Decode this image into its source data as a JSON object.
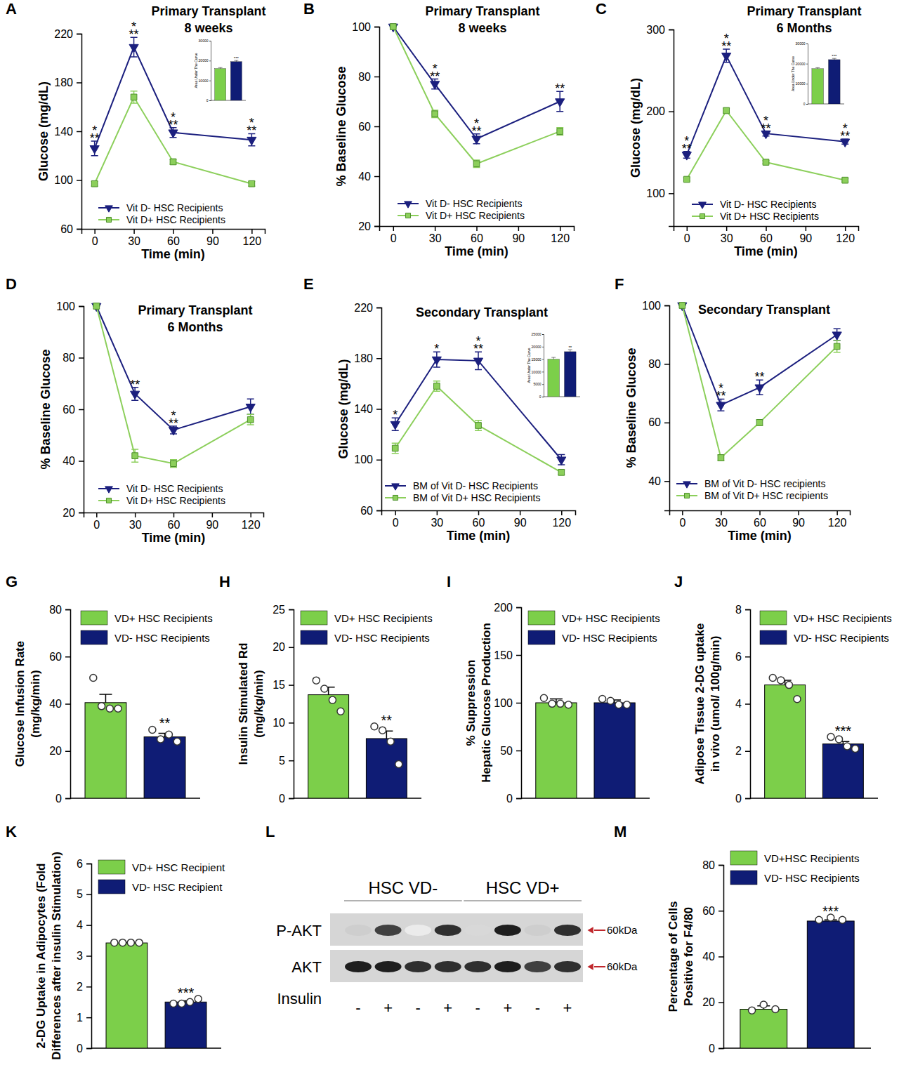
{
  "chart_data": [
    {
      "type": "line",
      "panel": "A",
      "title": "Primary Transplant",
      "subtitle": "8 weeks",
      "xlabel": "Time (min)",
      "ylabel": "Glucose (mg/dL)",
      "x": [
        0,
        30,
        60,
        120
      ],
      "xlim": [
        -10,
        130
      ],
      "xticks": [
        0,
        30,
        60,
        90,
        120
      ],
      "ylim": [
        60,
        220
      ],
      "yticks": [
        60,
        100,
        140,
        180,
        220
      ],
      "series": [
        {
          "name": "Vit D- HSC Recipients",
          "color": "#1b1f7e",
          "marker": "triangle-down",
          "line_style": "solid",
          "values": [
            126,
            209,
            139,
            133
          ],
          "errors": [
            6,
            8,
            4,
            5
          ]
        },
        {
          "name": "Vit D+ HSC Recipients",
          "color": "#8ccf5b",
          "marker": "square",
          "line_style": "solid",
          "values": [
            97,
            168,
            115,
            97
          ],
          "errors": [
            2,
            5,
            2,
            2
          ]
        }
      ],
      "annotations": [
        {
          "x": 0,
          "text": [
            "*",
            "**"
          ]
        },
        {
          "x": 30,
          "text": [
            "*",
            "**"
          ]
        },
        {
          "x": 60,
          "text": [
            "*",
            "**"
          ]
        },
        {
          "x": 120,
          "text": [
            "*",
            "**"
          ]
        }
      ],
      "inset": {
        "type": "bar",
        "ylabel": "Area Under The Curve",
        "ylim": [
          0,
          30000
        ],
        "yticks": [
          0,
          10000,
          20000,
          30000
        ],
        "series": [
          {
            "color": "#7ccf4a",
            "values": [
              16000
            ],
            "errors": [
              500
            ]
          },
          {
            "color": "#0f1c75",
            "values": [
              19500
            ],
            "errors": [
              600
            ]
          }
        ],
        "annotations": [
          {
            "x": 1,
            "text": [
              "***"
            ]
          }
        ]
      }
    },
    {
      "type": "line",
      "panel": "B",
      "title": "Primary Transplant",
      "subtitle": "8 weeks",
      "xlabel": "Time (min)",
      "ylabel": "% Baseline Glucose",
      "x": [
        0,
        30,
        60,
        120
      ],
      "xlim": [
        -10,
        130
      ],
      "xticks": [
        0,
        30,
        60,
        90,
        120
      ],
      "ylim": [
        20,
        100
      ],
      "yticks": [
        20,
        40,
        60,
        80,
        100
      ],
      "series": [
        {
          "name": "Vit D- HSC Recipients",
          "color": "#1b1f7e",
          "marker": "triangle-down",
          "line_style": "solid",
          "values": [
            100,
            77,
            55,
            70
          ],
          "errors": [
            0,
            2,
            2,
            4
          ]
        },
        {
          "name": "Vit D+ HSC Recipients",
          "color": "#8ccf5b",
          "marker": "square",
          "line_style": "solid",
          "values": [
            100,
            65,
            45,
            58
          ],
          "errors": [
            0,
            1.5,
            1.5,
            1.5
          ]
        }
      ],
      "annotations": [
        {
          "x": 30,
          "text": [
            "*",
            "**"
          ]
        },
        {
          "x": 60,
          "text": [
            "*",
            "**"
          ]
        },
        {
          "x": 120,
          "text": [
            "**"
          ]
        }
      ]
    },
    {
      "type": "line",
      "panel": "C",
      "title": "Primary Transplant",
      "subtitle": "6 Months",
      "xlabel": "Time (min)",
      "ylabel": "Glucose (mg/dL)",
      "x": [
        0,
        30,
        60,
        120
      ],
      "xlim": [
        -10,
        130
      ],
      "xticks": [
        0,
        30,
        60,
        90,
        120
      ],
      "ylim": [
        60,
        300
      ],
      "yticks": [
        100,
        200,
        300
      ],
      "series": [
        {
          "name": "Vit D- HSC Recipients",
          "color": "#1b1f7e",
          "marker": "triangle-down",
          "line_style": "solid",
          "values": [
            147,
            268,
            173,
            163
          ],
          "errors": [
            4,
            8,
            3,
            3
          ]
        },
        {
          "name": "Vit D+ HSC Recipients",
          "color": "#8ccf5b",
          "marker": "square",
          "line_style": "solid",
          "values": [
            117,
            201,
            138,
            116
          ],
          "errors": [
            2,
            3,
            2,
            2
          ]
        }
      ],
      "annotations": [
        {
          "x": 0,
          "text": [
            "*",
            "**"
          ]
        },
        {
          "x": 30,
          "text": [
            "*",
            "**"
          ]
        },
        {
          "x": 60,
          "text": [
            "*",
            "**"
          ]
        },
        {
          "x": 120,
          "text": [
            "*",
            "**"
          ]
        }
      ],
      "inset": {
        "type": "bar",
        "ylabel": "Area Under The Curve",
        "ylim": [
          0,
          30000
        ],
        "yticks": [
          0,
          10000,
          20000,
          30000
        ],
        "series": [
          {
            "color": "#7ccf4a",
            "values": [
              17500
            ],
            "errors": [
              500
            ]
          },
          {
            "color": "#0f1c75",
            "values": [
              22000
            ],
            "errors": [
              600
            ]
          }
        ],
        "annotations": [
          {
            "x": 1,
            "text": [
              "***"
            ]
          }
        ]
      }
    },
    {
      "type": "line",
      "panel": "D",
      "title": "Primary Transplant",
      "subtitle": "6 Months",
      "xlabel": "Time (min)",
      "ylabel": "% Baseline Glucose",
      "x": [
        0,
        30,
        60,
        120
      ],
      "xlim": [
        -10,
        130
      ],
      "xticks": [
        0,
        30,
        60,
        90,
        120
      ],
      "ylim": [
        20,
        100
      ],
      "yticks": [
        20,
        40,
        60,
        80,
        100
      ],
      "series": [
        {
          "name": "Vit D- HSC Recipients",
          "color": "#1b1f7e",
          "marker": "triangle-down",
          "line_style": "solid",
          "values": [
            100,
            66,
            52,
            61
          ],
          "errors": [
            0,
            2.5,
            1.5,
            3
          ]
        },
        {
          "name": "Vit D+ HSC Recipients",
          "color": "#8ccf5b",
          "marker": "square",
          "line_style": "solid",
          "values": [
            100,
            42,
            39,
            56
          ],
          "errors": [
            0,
            2.5,
            1.5,
            2
          ]
        }
      ],
      "annotations": [
        {
          "x": 30,
          "text": [
            "**"
          ]
        },
        {
          "x": 60,
          "text": [
            "*",
            "**"
          ]
        }
      ]
    },
    {
      "type": "line",
      "panel": "E",
      "title": "Secondary Transplant",
      "xlabel": "Time (min)",
      "ylabel": "Glucose (mg/dL)",
      "x": [
        0,
        30,
        60,
        120
      ],
      "xlim": [
        -10,
        130
      ],
      "xticks": [
        0,
        30,
        60,
        90,
        120
      ],
      "ylim": [
        60,
        220
      ],
      "yticks": [
        60,
        100,
        140,
        180,
        220
      ],
      "series": [
        {
          "name": "BM of Vit D- HSC Recipients",
          "color": "#1b1f7e",
          "marker": "triangle-down",
          "line_style": "solid",
          "values": [
            128,
            179,
            178,
            100
          ],
          "errors": [
            5,
            6,
            7,
            4
          ]
        },
        {
          "name": "BM of Vit D+ HSC Recipients",
          "color": "#8ccf5b",
          "marker": "square",
          "line_style": "solid",
          "values": [
            109,
            158,
            127,
            90
          ],
          "errors": [
            4,
            4,
            4,
            2
          ]
        }
      ],
      "annotations": [
        {
          "x": 0,
          "text": [
            "*"
          ]
        },
        {
          "x": 30,
          "text": [
            "*"
          ]
        },
        {
          "x": 60,
          "text": [
            "*",
            "**"
          ]
        }
      ],
      "inset": {
        "type": "bar",
        "ylabel": "Area Under The Curve",
        "ylim": [
          0,
          25000
        ],
        "yticks": [
          0,
          5000,
          10000,
          15000,
          20000,
          25000
        ],
        "series": [
          {
            "color": "#7ccf4a",
            "values": [
              15000
            ],
            "errors": [
              700
            ]
          },
          {
            "color": "#0f1c75",
            "values": [
              18000
            ],
            "errors": [
              800
            ]
          }
        ],
        "annotations": [
          {
            "x": 1,
            "text": [
              "**"
            ]
          }
        ]
      }
    },
    {
      "type": "line",
      "panel": "F",
      "title": "Secondary Transplant",
      "xlabel": "Time (min)",
      "ylabel": "% Baseline Glucose",
      "x": [
        0,
        30,
        60,
        120
      ],
      "xlim": [
        -10,
        130
      ],
      "xticks": [
        0,
        30,
        60,
        90,
        120
      ],
      "ylim": [
        30,
        100
      ],
      "yticks": [
        40,
        60,
        80,
        100
      ],
      "series": [
        {
          "name": "BM of Vit D- HSC recipients",
          "color": "#1b1f7e",
          "marker": "triangle-down",
          "line_style": "solid",
          "values": [
            100,
            66,
            72,
            90
          ],
          "errors": [
            0,
            2,
            2.5,
            2
          ]
        },
        {
          "name": "BM of Vit D+ HSC recipients",
          "color": "#8ccf5b",
          "marker": "square",
          "line_style": "solid",
          "values": [
            100,
            48,
            60,
            86
          ],
          "errors": [
            0,
            1,
            1,
            2
          ]
        }
      ],
      "annotations": [
        {
          "x": 30,
          "text": [
            "*",
            "**"
          ]
        },
        {
          "x": 60,
          "text": [
            "**"
          ]
        }
      ]
    },
    {
      "type": "bar",
      "panel": "G",
      "ylabel": [
        "Glucose Infusion Rate",
        "(mg/kg/min)"
      ],
      "ylim": [
        0,
        80
      ],
      "yticks": [
        0,
        20,
        40,
        60,
        80
      ],
      "series": [
        {
          "name": "VD+ HSC Recipients",
          "color": "#7ccf4a",
          "values": [
            40.5
          ],
          "errors": [
            3.5
          ],
          "points": [
            51,
            39,
            38,
            38
          ]
        },
        {
          "name": "VD- HSC Recipients",
          "color": "#0f1c75",
          "values": [
            26
          ],
          "errors": [
            1.5
          ],
          "points": [
            29,
            25,
            27,
            24
          ]
        }
      ],
      "annotations": [
        {
          "x": 1,
          "text": [
            "**"
          ]
        }
      ]
    },
    {
      "type": "bar",
      "panel": "H",
      "ylabel": [
        "Insulin Stimulated Rd",
        "(mg/kg/min)"
      ],
      "ylim": [
        0,
        25
      ],
      "yticks": [
        0,
        5,
        10,
        15,
        20,
        25
      ],
      "series": [
        {
          "name": "VD+ HSC Recipients",
          "color": "#7ccf4a",
          "values": [
            13.7
          ],
          "errors": [
            1
          ],
          "points": [
            15.6,
            14.5,
            13,
            11.5
          ]
        },
        {
          "name": "VD- HSC Recipients",
          "color": "#0f1c75",
          "values": [
            7.9
          ],
          "errors": [
            1
          ],
          "points": [
            9.5,
            9,
            7.5,
            4.5
          ]
        }
      ],
      "annotations": [
        {
          "x": 1,
          "text": [
            "**"
          ]
        }
      ]
    },
    {
      "type": "bar",
      "panel": "I",
      "ylabel": [
        "% Suppression",
        "Hepatic Glucose Production"
      ],
      "ylim": [
        0,
        200
      ],
      "yticks": [
        0,
        50,
        100,
        150,
        200
      ],
      "series": [
        {
          "name": "VD+ HSC Recipients",
          "color": "#7ccf4a",
          "values": [
            100
          ],
          "errors": [
            4
          ],
          "points": [
            105,
            99,
            99,
            98
          ]
        },
        {
          "name": "VD- HSC Recipients",
          "color": "#0f1c75",
          "values": [
            100
          ],
          "errors": [
            3
          ],
          "points": [
            104,
            102,
            98,
            98
          ]
        }
      ]
    },
    {
      "type": "bar",
      "panel": "J",
      "ylabel": [
        "Adipose Tissue 2-DG uptake",
        "in vivo (umol/ 100g/min)"
      ],
      "ylim": [
        0,
        8
      ],
      "yticks": [
        0,
        2,
        4,
        6,
        8
      ],
      "series": [
        {
          "name": "VD+ HSC Recipients",
          "color": "#7ccf4a",
          "values": [
            4.8
          ],
          "errors": [
            0.2
          ],
          "points": [
            5.1,
            5,
            4.8,
            4.2
          ]
        },
        {
          "name": "VD- HSC Recipients",
          "color": "#0f1c75",
          "values": [
            2.3
          ],
          "errors": [
            0.1
          ],
          "points": [
            2.6,
            2.5,
            2.2,
            2.1
          ]
        }
      ],
      "annotations": [
        {
          "x": 1,
          "text": [
            "***"
          ]
        }
      ]
    },
    {
      "type": "bar",
      "panel": "K",
      "ylabel": [
        "2-DG Uptake in Adipocytes (Fold",
        "Differences after insulin Stimulation)"
      ],
      "ylim": [
        0,
        6
      ],
      "yticks": [
        0,
        1,
        2,
        3,
        4,
        5,
        6
      ],
      "series": [
        {
          "name": "VD+ HSC Recipient",
          "color": "#7ccf4a",
          "values": [
            3.42
          ],
          "errors": [
            0.02
          ],
          "points": [
            3.43,
            3.43,
            3.43,
            3.43
          ]
        },
        {
          "name": "VD- HSC Recipient",
          "color": "#0f1c75",
          "values": [
            1.5
          ],
          "errors": [
            0.04
          ],
          "points": [
            1.45,
            1.45,
            1.5,
            1.6
          ]
        }
      ],
      "annotations": [
        {
          "x": 1,
          "text": [
            "***"
          ]
        }
      ]
    },
    {
      "type": "blot",
      "panel": "L",
      "groups": [
        {
          "label": "HSC VD-",
          "lane_count": 4
        },
        {
          "label": "HSC VD+",
          "lane_count": 4
        }
      ],
      "rows": [
        {
          "label": "P-AKT",
          "size": "60kDa",
          "intensity": [
            0.3,
            0.8,
            0.15,
            0.85,
            0.25,
            0.9,
            0.3,
            0.85
          ]
        },
        {
          "label": "AKT",
          "size": "60kDa",
          "intensity": [
            0.9,
            0.9,
            0.85,
            0.85,
            0.85,
            0.9,
            0.8,
            0.85
          ]
        }
      ],
      "lane_title": "Insulin",
      "lanes": [
        "-",
        "+",
        "-",
        "+",
        "-",
        "+",
        "-",
        "+"
      ]
    },
    {
      "type": "bar",
      "panel": "M",
      "ylabel": [
        "Percentage of  Cells",
        "Positive for F4/80"
      ],
      "ylim": [
        0,
        80
      ],
      "yticks": [
        0,
        20,
        40,
        60,
        80
      ],
      "series": [
        {
          "name": "VD+HSC Recipients",
          "color": "#7ccf4a",
          "values": [
            17
          ],
          "errors": [
            1.5
          ],
          "points": [
            16.5,
            19,
            17
          ]
        },
        {
          "name": "VD- HSC Recipients",
          "color": "#0f1c75",
          "values": [
            55.5
          ],
          "errors": [
            0.5
          ],
          "points": [
            56,
            57,
            56
          ]
        }
      ],
      "annotations": [
        {
          "x": 1,
          "text": [
            "***"
          ]
        }
      ]
    }
  ]
}
